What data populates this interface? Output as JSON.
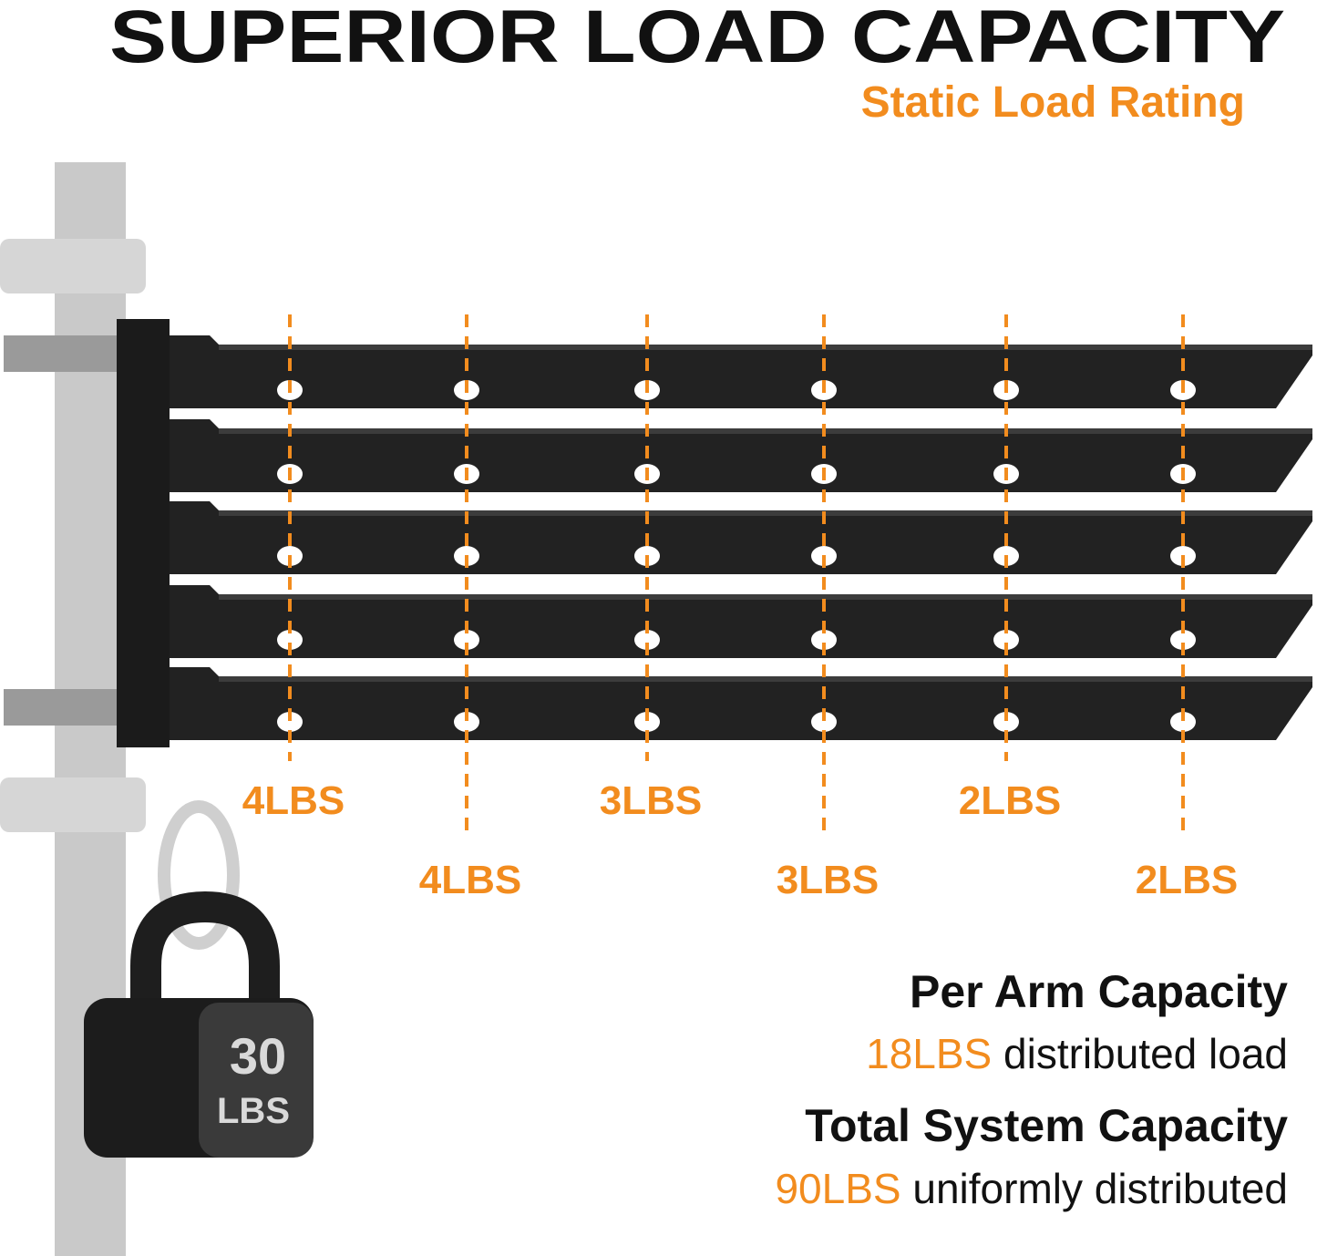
{
  "header": {
    "title": "SUPERIOR LOAD CAPACITY",
    "subtitle": "Static Load Rating"
  },
  "load_labels": [
    "4LBS",
    "4LBS",
    "3LBS",
    "3LBS",
    "2LBS",
    "2LBS"
  ],
  "weight": {
    "amount": "30",
    "unit": "LBS"
  },
  "capacity": {
    "per_arm": {
      "heading": "Per Arm Capacity",
      "amount": "18LBS",
      "description": "distributed load"
    },
    "total": {
      "heading": "Total System Capacity",
      "amount": "90LBS",
      "description": "uniformly distributed"
    }
  }
}
